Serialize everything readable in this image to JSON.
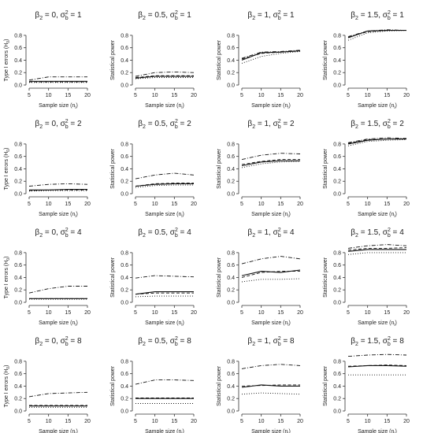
{
  "figure": {
    "x_ticks": [
      "5",
      "10",
      "15",
      "20"
    ],
    "y_ticks": [
      "0.0",
      "0.2",
      "0.4",
      "0.6",
      "0.8"
    ],
    "xlabel": "Sample size (n",
    "xlabel_sub": "i",
    "xlabel_end": ")",
    "ylabel_type1": "Type I errors (H",
    "ylabel_type1_sub": "0",
    "ylabel_type1_end": ")",
    "ylabel_power": "Statistical power",
    "line_styles": [
      "solid",
      "dashed",
      "dotted",
      "dash-dot"
    ]
  },
  "chart_data": [
    {
      "type": "line",
      "beta": "0",
      "sigma": "1",
      "x": [
        5,
        10,
        15,
        20
      ],
      "ylim": [
        0,
        0.9
      ],
      "series": [
        {
          "style": "solid",
          "values": [
            0.06,
            0.06,
            0.06,
            0.06
          ]
        },
        {
          "style": "dashed",
          "values": [
            0.05,
            0.05,
            0.05,
            0.05
          ]
        },
        {
          "style": "dotted",
          "values": [
            0.04,
            0.04,
            0.04,
            0.04
          ]
        },
        {
          "style": "dash-dot",
          "values": [
            0.08,
            0.13,
            0.13,
            0.13
          ]
        }
      ]
    },
    {
      "type": "line",
      "beta": "0.5",
      "sigma": "1",
      "x": [
        5,
        10,
        15,
        20
      ],
      "ylim": [
        0,
        0.9
      ],
      "series": [
        {
          "style": "solid",
          "values": [
            0.11,
            0.14,
            0.14,
            0.14
          ]
        },
        {
          "style": "dashed",
          "values": [
            0.12,
            0.15,
            0.15,
            0.15
          ]
        },
        {
          "style": "dotted",
          "values": [
            0.1,
            0.12,
            0.12,
            0.12
          ]
        },
        {
          "style": "dash-dot",
          "values": [
            0.14,
            0.2,
            0.21,
            0.2
          ]
        }
      ]
    },
    {
      "type": "line",
      "beta": "1",
      "sigma": "1",
      "x": [
        5,
        10,
        15,
        20
      ],
      "ylim": [
        0,
        0.9
      ],
      "series": [
        {
          "style": "solid",
          "values": [
            0.4,
            0.52,
            0.53,
            0.55
          ]
        },
        {
          "style": "dashed",
          "values": [
            0.42,
            0.51,
            0.53,
            0.55
          ]
        },
        {
          "style": "dotted",
          "values": [
            0.35,
            0.46,
            0.51,
            0.54
          ]
        },
        {
          "style": "dash-dot",
          "values": [
            0.43,
            0.53,
            0.54,
            0.56
          ]
        }
      ]
    },
    {
      "type": "line",
      "beta": "1.5",
      "sigma": "1",
      "x": [
        5,
        10,
        15,
        20
      ],
      "ylim": [
        0,
        0.9
      ],
      "series": [
        {
          "style": "solid",
          "values": [
            0.76,
            0.87,
            0.88,
            0.88
          ]
        },
        {
          "style": "dashed",
          "values": [
            0.77,
            0.86,
            0.88,
            0.88
          ]
        },
        {
          "style": "dotted",
          "values": [
            0.72,
            0.84,
            0.87,
            0.88
          ]
        },
        {
          "style": "dash-dot",
          "values": [
            0.78,
            0.87,
            0.89,
            0.88
          ]
        }
      ]
    },
    {
      "type": "line",
      "beta": "0",
      "sigma": "2",
      "x": [
        5,
        10,
        15,
        20
      ],
      "ylim": [
        0,
        0.9
      ],
      "series": [
        {
          "style": "solid",
          "values": [
            0.06,
            0.06,
            0.07,
            0.07
          ]
        },
        {
          "style": "dashed",
          "values": [
            0.05,
            0.06,
            0.06,
            0.06
          ]
        },
        {
          "style": "dotted",
          "values": [
            0.04,
            0.05,
            0.05,
            0.05
          ]
        },
        {
          "style": "dash-dot",
          "values": [
            0.12,
            0.15,
            0.16,
            0.15
          ]
        }
      ]
    },
    {
      "type": "line",
      "beta": "0.5",
      "sigma": "2",
      "x": [
        5,
        10,
        15,
        20
      ],
      "ylim": [
        0,
        0.9
      ],
      "series": [
        {
          "style": "solid",
          "values": [
            0.12,
            0.15,
            0.16,
            0.16
          ]
        },
        {
          "style": "dashed",
          "values": [
            0.12,
            0.16,
            0.17,
            0.17
          ]
        },
        {
          "style": "dotted",
          "values": [
            0.1,
            0.13,
            0.14,
            0.14
          ]
        },
        {
          "style": "dash-dot",
          "values": [
            0.24,
            0.3,
            0.33,
            0.3
          ]
        }
      ]
    },
    {
      "type": "line",
      "beta": "1",
      "sigma": "2",
      "x": [
        5,
        10,
        15,
        20
      ],
      "ylim": [
        0,
        0.9
      ],
      "series": [
        {
          "style": "solid",
          "values": [
            0.45,
            0.51,
            0.53,
            0.53
          ]
        },
        {
          "style": "dashed",
          "values": [
            0.47,
            0.52,
            0.55,
            0.55
          ]
        },
        {
          "style": "dotted",
          "values": [
            0.42,
            0.48,
            0.51,
            0.52
          ]
        },
        {
          "style": "dash-dot",
          "values": [
            0.55,
            0.62,
            0.65,
            0.64
          ]
        }
      ]
    },
    {
      "type": "line",
      "beta": "1.5",
      "sigma": "2",
      "x": [
        5,
        10,
        15,
        20
      ],
      "ylim": [
        0,
        0.9
      ],
      "series": [
        {
          "style": "solid",
          "values": [
            0.8,
            0.86,
            0.88,
            0.88
          ]
        },
        {
          "style": "dashed",
          "values": [
            0.81,
            0.87,
            0.88,
            0.88
          ]
        },
        {
          "style": "dotted",
          "values": [
            0.77,
            0.84,
            0.86,
            0.87
          ]
        },
        {
          "style": "dash-dot",
          "values": [
            0.82,
            0.88,
            0.9,
            0.89
          ]
        }
      ]
    },
    {
      "type": "line",
      "beta": "0",
      "sigma": "4",
      "x": [
        5,
        10,
        15,
        20
      ],
      "ylim": [
        0,
        0.9
      ],
      "series": [
        {
          "style": "solid",
          "values": [
            0.06,
            0.06,
            0.06,
            0.06
          ]
        },
        {
          "style": "dashed",
          "values": [
            0.06,
            0.06,
            0.06,
            0.06
          ]
        },
        {
          "style": "dotted",
          "values": [
            0.05,
            0.05,
            0.05,
            0.05
          ]
        },
        {
          "style": "dash-dot",
          "values": [
            0.15,
            0.22,
            0.26,
            0.26
          ]
        }
      ]
    },
    {
      "type": "line",
      "beta": "0.5",
      "sigma": "4",
      "x": [
        5,
        10,
        15,
        20
      ],
      "ylim": [
        0,
        0.9
      ],
      "series": [
        {
          "style": "solid",
          "values": [
            0.13,
            0.17,
            0.17,
            0.17
          ]
        },
        {
          "style": "dashed",
          "values": [
            0.13,
            0.15,
            0.15,
            0.15
          ]
        },
        {
          "style": "dotted",
          "values": [
            0.09,
            0.1,
            0.1,
            0.1
          ]
        },
        {
          "style": "dash-dot",
          "values": [
            0.39,
            0.43,
            0.42,
            0.41
          ]
        }
      ]
    },
    {
      "type": "line",
      "beta": "1",
      "sigma": "4",
      "x": [
        5,
        10,
        15,
        20
      ],
      "ylim": [
        0,
        0.9
      ],
      "series": [
        {
          "style": "solid",
          "values": [
            0.43,
            0.5,
            0.48,
            0.52
          ]
        },
        {
          "style": "dashed",
          "values": [
            0.4,
            0.48,
            0.5,
            0.5
          ]
        },
        {
          "style": "dotted",
          "values": [
            0.33,
            0.37,
            0.37,
            0.38
          ]
        },
        {
          "style": "dash-dot",
          "values": [
            0.62,
            0.7,
            0.74,
            0.7
          ]
        }
      ]
    },
    {
      "type": "line",
      "beta": "1.5",
      "sigma": "4",
      "x": [
        5,
        10,
        15,
        20
      ],
      "ylim": [
        0,
        0.9
      ],
      "series": [
        {
          "style": "solid",
          "values": [
            0.82,
            0.85,
            0.85,
            0.85
          ]
        },
        {
          "style": "dashed",
          "values": [
            0.84,
            0.87,
            0.87,
            0.88
          ]
        },
        {
          "style": "dotted",
          "values": [
            0.77,
            0.8,
            0.8,
            0.8
          ]
        },
        {
          "style": "dash-dot",
          "values": [
            0.87,
            0.91,
            0.93,
            0.91
          ]
        }
      ]
    },
    {
      "type": "line",
      "beta": "0",
      "sigma": "8",
      "x": [
        5,
        10,
        15,
        20
      ],
      "ylim": [
        0,
        0.9
      ],
      "series": [
        {
          "style": "solid",
          "values": [
            0.08,
            0.08,
            0.08,
            0.08
          ]
        },
        {
          "style": "dashed",
          "values": [
            0.09,
            0.09,
            0.09,
            0.09
          ]
        },
        {
          "style": "dotted",
          "values": [
            0.06,
            0.06,
            0.06,
            0.06
          ]
        },
        {
          "style": "dash-dot",
          "values": [
            0.23,
            0.28,
            0.29,
            0.3
          ]
        }
      ]
    },
    {
      "type": "line",
      "beta": "0.5",
      "sigma": "8",
      "x": [
        5,
        10,
        15,
        20
      ],
      "ylim": [
        0,
        0.9
      ],
      "series": [
        {
          "style": "solid",
          "values": [
            0.2,
            0.2,
            0.2,
            0.2
          ]
        },
        {
          "style": "dashed",
          "values": [
            0.21,
            0.21,
            0.21,
            0.21
          ]
        },
        {
          "style": "dotted",
          "values": [
            0.12,
            0.12,
            0.12,
            0.12
          ]
        },
        {
          "style": "dash-dot",
          "values": [
            0.43,
            0.5,
            0.5,
            0.49
          ]
        }
      ]
    },
    {
      "type": "line",
      "beta": "1",
      "sigma": "8",
      "x": [
        5,
        10,
        15,
        20
      ],
      "ylim": [
        0,
        0.9
      ],
      "series": [
        {
          "style": "solid",
          "values": [
            0.38,
            0.42,
            0.4,
            0.4
          ]
        },
        {
          "style": "dashed",
          "values": [
            0.4,
            0.41,
            0.42,
            0.42
          ]
        },
        {
          "style": "dotted",
          "values": [
            0.27,
            0.29,
            0.28,
            0.27
          ]
        },
        {
          "style": "dash-dot",
          "values": [
            0.68,
            0.73,
            0.75,
            0.73
          ]
        }
      ]
    },
    {
      "type": "line",
      "beta": "1.5",
      "sigma": "8",
      "x": [
        5,
        10,
        15,
        20
      ],
      "ylim": [
        0,
        0.9
      ],
      "series": [
        {
          "style": "solid",
          "values": [
            0.71,
            0.73,
            0.73,
            0.72
          ]
        },
        {
          "style": "dashed",
          "values": [
            0.72,
            0.73,
            0.74,
            0.73
          ]
        },
        {
          "style": "dotted",
          "values": [
            0.58,
            0.58,
            0.58,
            0.58
          ]
        },
        {
          "style": "dash-dot",
          "values": [
            0.88,
            0.9,
            0.91,
            0.9
          ]
        }
      ]
    }
  ]
}
